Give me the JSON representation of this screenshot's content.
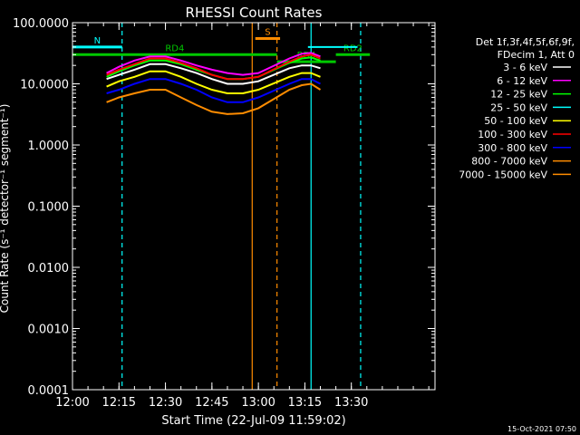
{
  "chart_data": {
    "type": "line",
    "title": "RHESSI Count Rates",
    "xlabel": "Start Time (22-Jul-09 11:59:02)",
    "ylabel": "Count Rate (s⁻¹ detector⁻¹ segment⁻¹)",
    "yscale": "log",
    "ylim": [
      0.0001,
      100
    ],
    "x_range_minutes_after_1200": [
      0,
      117
    ],
    "x_ticks": [
      "12:00",
      "12:15",
      "12:30",
      "12:45",
      "13:00",
      "13:15",
      "13:30"
    ],
    "y_ticks": [
      "100.0000",
      "10.0000",
      "1.0000",
      "0.1000",
      "0.0100",
      "0.0010",
      "0.0001"
    ],
    "grid": false,
    "legend_position": "top-right",
    "legend_header": [
      "Det 1f,3f,4f,5f,6f,9f,",
      "FDecim 1, Att 0"
    ],
    "series": [
      {
        "name": "3 - 6 keV",
        "color": "#ffffff",
        "x": [
          "12:11",
          "12:15",
          "12:20",
          "12:25",
          "12:30",
          "12:35",
          "12:40",
          "12:45",
          "12:50",
          "12:55",
          "13:00",
          "13:10",
          "13:14",
          "13:17",
          "13:20"
        ],
        "values": [
          12,
          14,
          17,
          21,
          21,
          18,
          15,
          12,
          10,
          10,
          11,
          18,
          20,
          20,
          18
        ]
      },
      {
        "name": "6 - 12 keV",
        "color": "#ff00ff",
        "x": [
          "12:11",
          "12:15",
          "12:20",
          "12:25",
          "12:30",
          "12:35",
          "12:40",
          "12:45",
          "12:50",
          "12:55",
          "13:00",
          "13:10",
          "13:14",
          "13:17",
          "13:20"
        ],
        "values": [
          15,
          19,
          24,
          28,
          28,
          24,
          20,
          17,
          15,
          14,
          15,
          26,
          31,
          32,
          28
        ]
      },
      {
        "name": "12 - 25 keV",
        "color": "#00ff00",
        "x": [
          "12:11",
          "12:15",
          "12:20",
          "12:25",
          "12:30",
          "12:35",
          "12:40",
          "12:45",
          "12:50",
          "12:55",
          "13:00",
          "13:10",
          "13:14",
          "13:17",
          "13:20"
        ],
        "values": [
          13,
          16,
          20,
          24,
          24,
          21,
          17,
          14,
          12,
          12,
          13,
          22,
          26,
          27,
          24
        ]
      },
      {
        "name": "25 - 50 keV",
        "color": "#00ffff",
        "x": [
          "12:00",
          "12:10",
          "12:16",
          "12:17",
          "13:15",
          "13:16",
          "13:31",
          "13:32"
        ],
        "values": [
          40,
          40,
          40,
          null,
          null,
          40,
          40,
          40
        ]
      },
      {
        "name": "50 - 100 keV",
        "color": "#ffff00",
        "x": [
          "12:11",
          "12:15",
          "12:20",
          "12:25",
          "12:30",
          "12:35",
          "12:40",
          "12:45",
          "12:50",
          "12:55",
          "13:00",
          "13:10",
          "13:14",
          "13:17",
          "13:20"
        ],
        "values": [
          9,
          11,
          13,
          16,
          16,
          13,
          10,
          8,
          7,
          7,
          8,
          13,
          15,
          15,
          13
        ]
      },
      {
        "name": "100 - 300 keV",
        "color": "#ff0000",
        "x": [
          "12:11",
          "12:15",
          "12:20",
          "12:25",
          "12:30",
          "12:35",
          "12:40",
          "12:45",
          "12:50",
          "12:55",
          "13:00",
          "13:10",
          "13:14",
          "13:17",
          "13:20"
        ],
        "values": [
          14,
          17,
          21,
          26,
          26,
          22,
          18,
          14,
          12,
          12,
          13,
          23,
          28,
          30,
          26
        ]
      },
      {
        "name": "300 - 800 keV",
        "color": "#0000ff",
        "x": [
          "12:11",
          "12:15",
          "12:20",
          "12:25",
          "12:30",
          "12:35",
          "12:40",
          "12:45",
          "12:50",
          "12:55",
          "13:00",
          "13:10",
          "13:14",
          "13:17",
          "13:20"
        ],
        "values": [
          7,
          8,
          10,
          12,
          12,
          10,
          8,
          6,
          5,
          5,
          6,
          10,
          12,
          12,
          10
        ]
      },
      {
        "name": "800 - 7000 keV",
        "color": "#ff8c00",
        "x": [
          "12:11",
          "12:15",
          "12:20",
          "12:25",
          "12:30",
          "12:35",
          "12:40",
          "12:45",
          "12:50",
          "12:55",
          "13:00",
          "13:10",
          "13:14",
          "13:17",
          "13:20"
        ],
        "values": [
          5,
          6,
          7,
          8,
          8,
          6,
          4.5,
          3.5,
          3.2,
          3.3,
          4,
          8,
          9.5,
          10,
          8
        ]
      },
      {
        "name": "7000 - 15000 keV",
        "color": "#ff8c00",
        "x": [],
        "values": []
      }
    ],
    "annotations": [
      {
        "label": "N",
        "color": "#00ffff",
        "x": [
          "12:00",
          "12:16"
        ],
        "level": 40
      },
      {
        "label": "S",
        "color": "#ff8c00",
        "x": [
          "12:59",
          "13:07"
        ],
        "level": 55
      },
      {
        "label": "RD4",
        "color": "#00c800",
        "x": [
          "11:59",
          "13:06"
        ],
        "level": 30
      },
      {
        "label": "RD4",
        "color": "#00c800",
        "x": [
          "13:06",
          "13:25"
        ],
        "level": 23
      },
      {
        "label": "RD2",
        "color": "#00c800",
        "x": [
          "13:25",
          "13:36"
        ],
        "level": 30
      }
    ],
    "vertical_markers": [
      {
        "x": "12:16",
        "color": "#00ffff",
        "style": "dashed"
      },
      {
        "x": "12:58",
        "color": "#ff8c00",
        "style": "solid"
      },
      {
        "x": "13:06",
        "color": "#ff8c00",
        "style": "dashed"
      },
      {
        "x": "13:17",
        "color": "#00ffff",
        "style": "solid"
      },
      {
        "x": "13:33",
        "color": "#00ffff",
        "style": "dashed"
      }
    ],
    "footer": "15-Oct-2021 07:50"
  }
}
